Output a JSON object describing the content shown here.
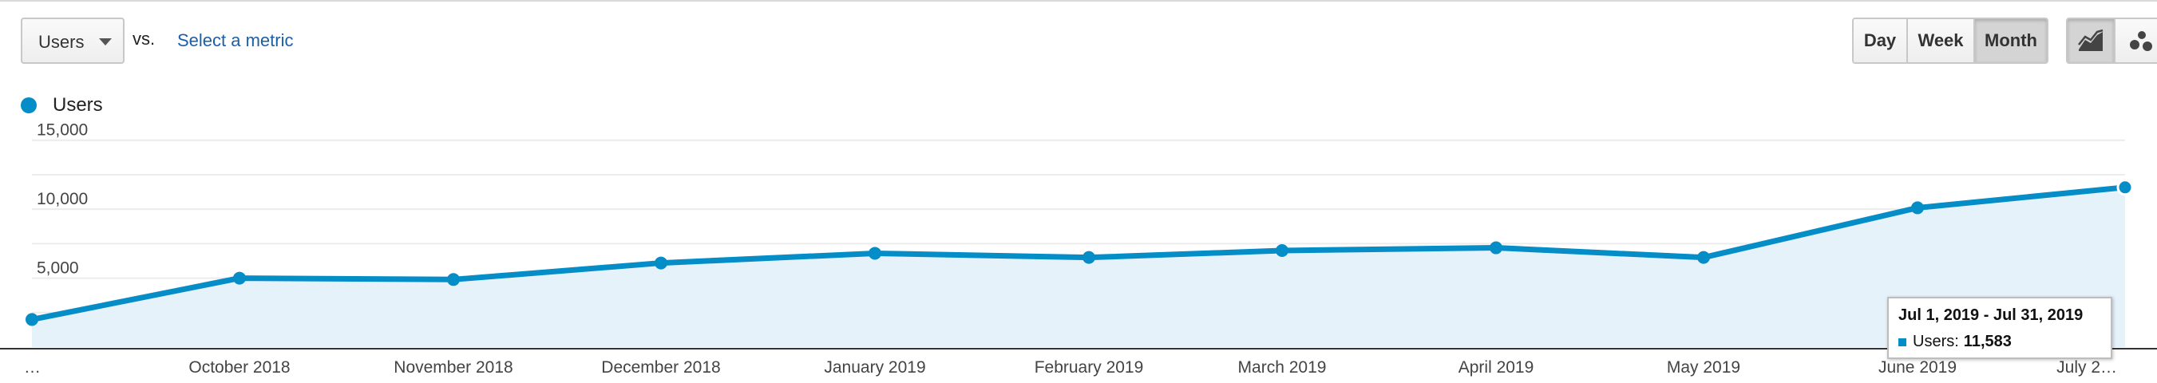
{
  "toolbar": {
    "metric_select": "Users",
    "vs_label": "vs.",
    "select_metric_link": "Select a metric",
    "periods": [
      "Day",
      "Week",
      "Month"
    ],
    "active_period": "Month",
    "chart_types": [
      "line-chart-icon",
      "motion-chart-icon"
    ],
    "active_chart_type": "line-chart-icon"
  },
  "legend": {
    "series_name": "Users",
    "color": "#058dc7"
  },
  "tooltip": {
    "range": "Jul 1, 2019 - Jul 31, 2019",
    "metric": "Users:",
    "value": "11,583"
  },
  "chart_data": {
    "type": "area",
    "ylim": [
      0,
      16200
    ],
    "yticks": [
      "15,000",
      "10,000",
      "5,000"
    ],
    "ytick_values": [
      15000,
      10000,
      5000
    ],
    "categories": [
      "…",
      "October 2018",
      "November 2018",
      "December 2018",
      "January 2019",
      "February 2019",
      "March 2019",
      "April 2019",
      "May 2019",
      "June 2019",
      "July 2…"
    ],
    "series": [
      {
        "name": "Users",
        "color": "#058dc7",
        "values": [
          2000,
          5000,
          4900,
          6100,
          6800,
          6500,
          7000,
          7200,
          6500,
          10100,
          11583
        ]
      }
    ],
    "grid": true
  }
}
